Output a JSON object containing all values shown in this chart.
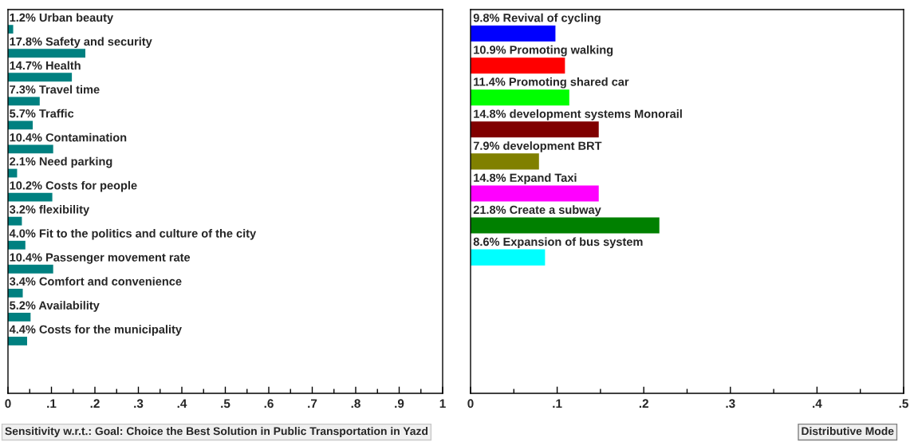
{
  "chart_data": [
    {
      "type": "bar",
      "orientation": "horizontal",
      "categories": [
        "Urban beauty",
        "Safety and security",
        "Health",
        "Travel time",
        "Traffic",
        "Contamination",
        "Need parking",
        "Costs for people",
        "flexibility",
        "Fit to the politics and culture of the city",
        "Passenger movement rate",
        "Comfort and convenience",
        "Availability",
        "Costs for the municipality",
        null,
        null
      ],
      "values": [
        0.012,
        0.178,
        0.147,
        0.073,
        0.057,
        0.104,
        0.021,
        0.102,
        0.032,
        0.04,
        0.104,
        0.034,
        0.052,
        0.044,
        null,
        null
      ],
      "value_labels": [
        "1.2%",
        "17.8%",
        "14.7%",
        "7.3%",
        "5.7%",
        "10.4%",
        "2.1%",
        "10.2%",
        "3.2%",
        "4.0%",
        "10.4%",
        "3.4%",
        "5.2%",
        "4.4%",
        null,
        null
      ],
      "color": "#008080",
      "xlim": [
        0,
        1
      ],
      "xticks": [
        0,
        {
          "value": 0.05,
          "label": null
        },
        {
          "value": 0.1,
          "label": ".1"
        },
        {
          "value": 0.15,
          "label": null
        },
        {
          "value": 0.2,
          "label": ".2"
        },
        {
          "value": 0.25,
          "label": null
        },
        {
          "value": 0.3,
          "label": ".3"
        },
        {
          "value": 0.35,
          "label": null
        },
        {
          "value": 0.4,
          "label": ".4"
        },
        {
          "value": 0.45,
          "label": null
        },
        {
          "value": 0.5,
          "label": ".5"
        },
        {
          "value": 0.55,
          "label": null
        },
        {
          "value": 0.6,
          "label": ".6"
        },
        {
          "value": 0.65,
          "label": null
        },
        {
          "value": 0.7,
          "label": ".7"
        },
        {
          "value": 0.75,
          "label": null
        },
        {
          "value": 0.8,
          "label": ".8"
        },
        {
          "value": 0.85,
          "label": null
        },
        {
          "value": 0.9,
          "label": ".9"
        },
        {
          "value": 0.95,
          "label": null
        },
        1
      ],
      "grid": false,
      "legend": false,
      "annotations": [
        "Sensitivity w.r.t.: Goal: Choice the Best Solution in Public Transportation in Yazd"
      ]
    },
    {
      "type": "bar",
      "orientation": "horizontal",
      "categories": [
        "Revival of cycling",
        "Promoting walking",
        "Promoting shared car",
        "development systems Monorail",
        "development BRT",
        "Expand Taxi",
        "Create a subway",
        "Expansion of bus system",
        null,
        null,
        null,
        null
      ],
      "values": [
        0.098,
        0.109,
        0.114,
        0.148,
        0.079,
        0.148,
        0.218,
        0.086,
        null,
        null,
        null,
        null
      ],
      "value_labels": [
        "9.8%",
        "10.9%",
        "11.4%",
        "14.8%",
        "7.9%",
        "14.8%",
        "21.8%",
        "8.6%",
        null,
        null,
        null,
        null
      ],
      "colors": [
        "#0000ff",
        "#ff0000",
        "#00ff00",
        "#800000",
        "#808000",
        "#ff00ff",
        "#008000",
        "#00ffff",
        null,
        null,
        null,
        null
      ],
      "xlim": [
        0,
        0.5
      ],
      "xticks": [
        0,
        {
          "value": 0.05,
          "label": null
        },
        {
          "value": 0.1,
          "label": ".1"
        },
        {
          "value": 0.15,
          "label": null
        },
        {
          "value": 0.2,
          "label": ".2"
        },
        {
          "value": 0.25,
          "label": null
        },
        {
          "value": 0.3,
          "label": ".3"
        },
        {
          "value": 0.35,
          "label": null
        },
        {
          "value": 0.4,
          "label": ".4"
        },
        {
          "value": 0.45,
          "label": null
        },
        {
          "value": 0.5,
          "label": ".5"
        }
      ],
      "grid": false,
      "legend": false,
      "annotations": [
        "Distributive Mode"
      ]
    }
  ]
}
